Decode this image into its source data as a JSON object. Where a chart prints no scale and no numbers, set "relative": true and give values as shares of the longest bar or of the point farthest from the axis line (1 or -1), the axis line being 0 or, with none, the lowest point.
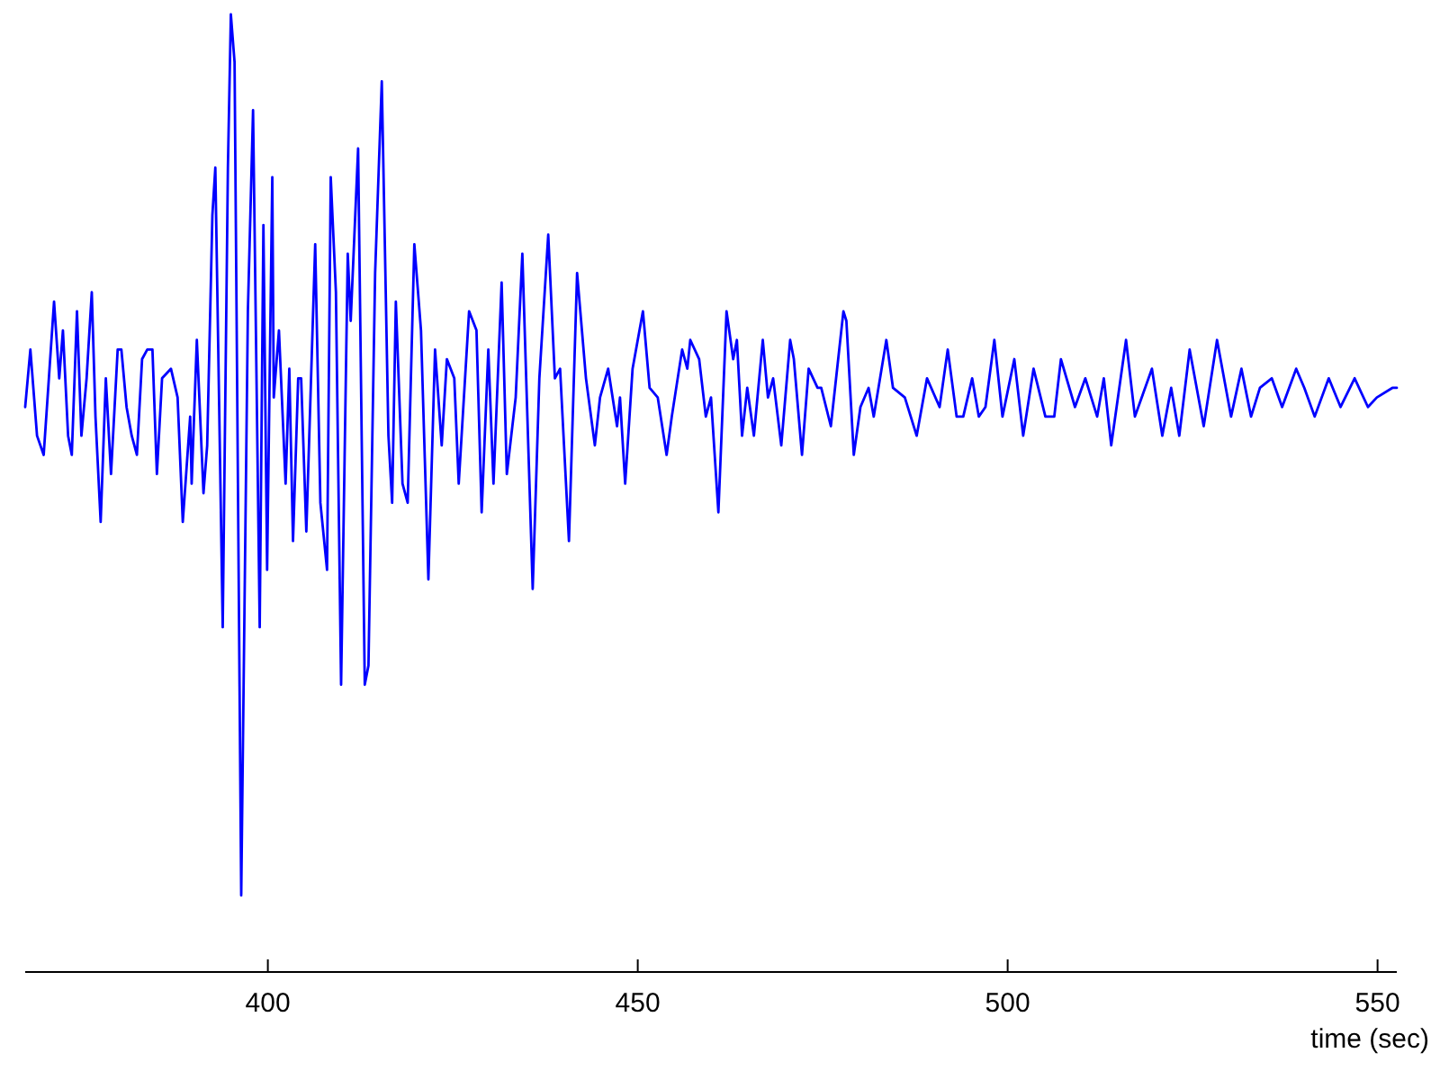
{
  "chart_data": {
    "type": "line",
    "xlabel": "time (sec)",
    "relative": true,
    "color": "#0000ff",
    "xlim": [
      367.2,
      552.6
    ],
    "xticks": [
      400,
      450,
      500,
      550
    ],
    "x": [
      367.2,
      367.9,
      368.8,
      369.7,
      370.4,
      371.1,
      371.8,
      372.3,
      373.0,
      373.5,
      374.2,
      374.8,
      375.5,
      376.2,
      376.7,
      377.4,
      378.1,
      378.8,
      379.7,
      380.2,
      380.9,
      381.6,
      382.3,
      383.0,
      383.7,
      384.4,
      385.0,
      385.7,
      386.9,
      387.8,
      388.5,
      389.5,
      389.7,
      390.4,
      391.3,
      391.8,
      392.5,
      392.9,
      393.9,
      394.6,
      395.0,
      395.5,
      396.4,
      397.3,
      398.0,
      398.9,
      399.4,
      399.9,
      400.6,
      400.8,
      401.5,
      402.4,
      402.9,
      403.4,
      404.1,
      404.5,
      405.2,
      406.4,
      407.1,
      408.0,
      408.5,
      409.2,
      409.9,
      410.8,
      411.2,
      412.2,
      413.1,
      413.6,
      414.5,
      415.4,
      416.3,
      416.8,
      417.3,
      418.2,
      418.9,
      419.8,
      420.7,
      421.7,
      422.6,
      423.5,
      424.2,
      425.2,
      425.8,
      427.2,
      428.2,
      428.9,
      429.8,
      430.5,
      431.6,
      432.3,
      433.5,
      434.4,
      435.8,
      436.7,
      437.9,
      438.8,
      439.5,
      440.7,
      441.8,
      443.0,
      444.2,
      444.9,
      446.0,
      447.2,
      447.6,
      448.3,
      449.3,
      450.7,
      451.6,
      452.7,
      453.9,
      454.6,
      456.0,
      456.7,
      457.1,
      458.3,
      459.2,
      459.9,
      460.9,
      462.0,
      462.9,
      463.4,
      464.1,
      464.8,
      465.7,
      466.9,
      467.6,
      468.3,
      469.4,
      470.6,
      471.1,
      472.2,
      473.1,
      474.3,
      474.8,
      476.1,
      477.8,
      478.2,
      479.2,
      480.1,
      481.2,
      481.9,
      483.6,
      484.5,
      486.1,
      487.7,
      489.1,
      490.8,
      491.9,
      493.1,
      494.0,
      495.2,
      496.1,
      497.0,
      498.2,
      499.3,
      500.9,
      502.1,
      503.5,
      505.1,
      506.3,
      507.2,
      509.1,
      510.5,
      512.1,
      513.0,
      514.0,
      516.0,
      517.2,
      519.5,
      520.9,
      522.1,
      523.2,
      524.6,
      526.5,
      528.3,
      530.2,
      531.6,
      532.9,
      534.1,
      535.7,
      537.1,
      539.0,
      540.1,
      541.5,
      543.4,
      545.0,
      546.9,
      548.7,
      549.9,
      552.0,
      552.6
    ],
    "values": [
      0.59,
      0.65,
      0.56,
      0.54,
      0.62,
      0.7,
      0.62,
      0.67,
      0.56,
      0.54,
      0.69,
      0.56,
      0.62,
      0.71,
      0.58,
      0.47,
      0.62,
      0.52,
      0.65,
      0.65,
      0.59,
      0.56,
      0.54,
      0.64,
      0.65,
      0.65,
      0.52,
      0.62,
      0.63,
      0.6,
      0.47,
      0.58,
      0.51,
      0.66,
      0.5,
      0.55,
      0.79,
      0.84,
      0.36,
      0.84,
      1.0,
      0.95,
      0.08,
      0.69,
      0.9,
      0.36,
      0.78,
      0.42,
      0.83,
      0.6,
      0.67,
      0.51,
      0.63,
      0.45,
      0.62,
      0.62,
      0.46,
      0.76,
      0.49,
      0.42,
      0.83,
      0.71,
      0.3,
      0.75,
      0.68,
      0.86,
      0.3,
      0.32,
      0.73,
      0.93,
      0.56,
      0.49,
      0.7,
      0.51,
      0.49,
      0.76,
      0.67,
      0.41,
      0.65,
      0.55,
      0.64,
      0.62,
      0.51,
      0.69,
      0.67,
      0.48,
      0.65,
      0.51,
      0.72,
      0.52,
      0.6,
      0.75,
      0.4,
      0.62,
      0.77,
      0.62,
      0.63,
      0.45,
      0.73,
      0.62,
      0.55,
      0.6,
      0.63,
      0.57,
      0.6,
      0.51,
      0.63,
      0.69,
      0.61,
      0.6,
      0.54,
      0.58,
      0.65,
      0.63,
      0.66,
      0.64,
      0.58,
      0.6,
      0.48,
      0.69,
      0.64,
      0.66,
      0.56,
      0.61,
      0.56,
      0.66,
      0.6,
      0.62,
      0.55,
      0.66,
      0.64,
      0.54,
      0.63,
      0.61,
      0.61,
      0.57,
      0.69,
      0.68,
      0.54,
      0.59,
      0.61,
      0.58,
      0.66,
      0.61,
      0.6,
      0.56,
      0.62,
      0.59,
      0.65,
      0.58,
      0.58,
      0.62,
      0.58,
      0.59,
      0.66,
      0.58,
      0.64,
      0.56,
      0.63,
      0.58,
      0.58,
      0.64,
      0.59,
      0.62,
      0.58,
      0.62,
      0.55,
      0.66,
      0.58,
      0.63,
      0.56,
      0.61,
      0.56,
      0.65,
      0.57,
      0.66,
      0.58,
      0.63,
      0.58,
      0.61,
      0.62,
      0.59,
      0.63,
      0.61,
      0.58,
      0.62,
      0.59,
      0.62,
      0.59,
      0.6,
      0.61,
      0.61
    ]
  }
}
